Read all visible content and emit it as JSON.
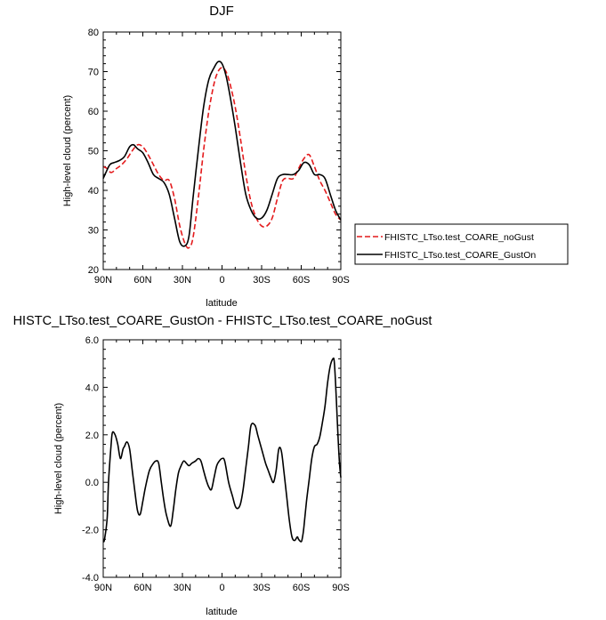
{
  "chart_data": [
    {
      "type": "line",
      "title": "DJF",
      "xlabel": "latitude",
      "ylabel": "High-level cloud (percent)",
      "xlim": [
        90,
        -90
      ],
      "ylim": [
        20,
        80
      ],
      "x_ticks": [
        90,
        60,
        30,
        0,
        -30,
        -60,
        -90
      ],
      "x_tick_labels": [
        "90N",
        "60N",
        "30N",
        "0",
        "30S",
        "60S",
        "90S"
      ],
      "y_ticks": [
        20,
        30,
        40,
        50,
        60,
        70,
        80
      ],
      "y_tick_labels": [
        "20",
        "30",
        "40",
        "50",
        "60",
        "70",
        "80"
      ],
      "legend_position": "right",
      "series": [
        {
          "name": "FHISTC_LTso.test_COARE_noGust",
          "color": "#e41a1c",
          "dash": "dashed",
          "x": [
            90,
            87,
            84,
            80,
            76,
            72,
            68,
            64,
            60,
            56,
            52,
            48,
            44,
            40,
            36,
            32,
            28,
            25,
            22,
            18,
            14,
            10,
            6,
            3,
            0,
            -3,
            -6,
            -10,
            -14,
            -18,
            -22,
            -26,
            -30,
            -34,
            -38,
            -42,
            -46,
            -50,
            -54,
            -58,
            -62,
            -66,
            -70,
            -74,
            -78,
            -82,
            -86,
            -90
          ],
          "y": [
            46,
            45.5,
            44.5,
            45.5,
            46.5,
            48,
            50,
            51.5,
            51,
            49,
            46.5,
            44,
            42.5,
            42.5,
            38,
            31,
            26.5,
            25.5,
            28,
            38,
            50,
            60,
            67,
            70,
            71,
            70,
            67,
            61,
            53,
            44,
            37,
            33,
            31,
            31,
            33,
            38,
            42.5,
            43,
            43,
            45.5,
            48,
            49,
            46,
            42.5,
            40,
            37,
            34,
            32.5
          ]
        },
        {
          "name": "FHISTC_LTso.test_COARE_GustOn",
          "color": "#000000",
          "dash": "solid",
          "x": [
            90,
            88,
            85,
            82,
            78,
            74,
            70,
            67,
            64,
            60,
            56,
            52,
            48,
            44,
            40,
            36,
            32,
            28,
            25,
            22,
            18,
            14,
            10,
            6,
            3,
            0,
            -3,
            -6,
            -10,
            -14,
            -18,
            -22,
            -26,
            -30,
            -34,
            -38,
            -42,
            -46,
            -50,
            -54,
            -58,
            -62,
            -66,
            -70,
            -74,
            -78,
            -82,
            -86,
            -90
          ],
          "y": [
            43,
            44.5,
            46.5,
            47,
            47.5,
            48.5,
            51,
            51.5,
            50.5,
            49.5,
            47,
            44,
            43,
            42,
            39,
            33,
            27,
            26,
            28.5,
            38,
            50,
            61,
            68,
            71,
            72.5,
            72,
            69,
            64,
            56,
            47,
            39,
            35,
            33,
            33,
            35,
            39,
            43,
            44,
            44,
            44,
            45,
            47,
            46.5,
            44,
            44,
            43,
            39,
            35,
            32.5
          ]
        }
      ]
    },
    {
      "type": "line",
      "title": "HISTC_LTso.test_COARE_GustOn - FHISTC_LTso.test_COARE_noGust",
      "xlabel": "latitude",
      "ylabel": "High-level cloud (percent)",
      "xlim": [
        90,
        -90
      ],
      "ylim": [
        -4,
        6
      ],
      "x_ticks": [
        90,
        60,
        30,
        0,
        -30,
        -60,
        -90
      ],
      "x_tick_labels": [
        "90N",
        "60N",
        "30N",
        "0",
        "30S",
        "60S",
        "90S"
      ],
      "y_ticks": [
        -4,
        -2,
        0,
        2,
        4,
        6
      ],
      "y_tick_labels": [
        "-4.0",
        "-2.0",
        "0.0",
        "2.0",
        "4.0",
        "6.0"
      ],
      "series": [
        {
          "color": "#000000",
          "dash": "solid",
          "x": [
            90,
            89,
            87,
            86,
            84,
            83,
            81,
            79,
            77,
            75,
            74,
            72,
            70,
            68,
            66,
            64,
            62,
            60,
            58,
            55,
            52,
            50,
            48,
            46,
            44,
            42,
            39,
            37,
            35,
            33,
            31,
            29,
            27,
            25,
            23,
            20,
            18,
            16,
            14,
            12,
            10,
            8,
            6,
            4,
            2,
            0,
            -2,
            -5,
            -8,
            -10,
            -12,
            -14,
            -16,
            -18,
            -20,
            -22,
            -25,
            -27,
            -29,
            -31,
            -33,
            -35,
            -37,
            -39,
            -41,
            -43,
            -45,
            -47,
            -49,
            -51,
            -53,
            -55,
            -57,
            -58,
            -60,
            -61,
            -62,
            -64,
            -66,
            -68,
            -70,
            -72,
            -74,
            -76,
            -78,
            -80,
            -82,
            -84,
            -85,
            -86,
            -87,
            -88,
            -89,
            -90
          ],
          "y": [
            -2.5,
            -2.4,
            -1.5,
            0,
            1.6,
            2.1,
            2,
            1.6,
            1,
            1.4,
            1.5,
            1.7,
            1.4,
            0.5,
            -0.4,
            -1.2,
            -1.35,
            -0.8,
            -0.2,
            0.5,
            0.8,
            0.9,
            0.8,
            0,
            -0.8,
            -1.4,
            -1.85,
            -1.2,
            -0.3,
            0.4,
            0.7,
            0.9,
            0.8,
            0.7,
            0.8,
            0.9,
            1,
            0.9,
            0.5,
            0.1,
            -0.2,
            -0.3,
            0.2,
            0.7,
            0.9,
            1,
            0.9,
            0,
            -0.6,
            -1,
            -1.1,
            -0.9,
            -0.3,
            0.6,
            1.5,
            2.4,
            2.4,
            2,
            1.6,
            1.2,
            0.8,
            0.5,
            0.2,
            0,
            0.5,
            1.4,
            1.3,
            0.4,
            -0.6,
            -1.6,
            -2.3,
            -2.45,
            -2.3,
            -2.4,
            -2.5,
            -2.3,
            -1.9,
            -0.8,
            0.1,
            1,
            1.5,
            1.6,
            1.9,
            2.5,
            3.2,
            4.2,
            4.9,
            5.2,
            5.1,
            4.2,
            3,
            1.8,
            0.8,
            0.2
          ]
        }
      ]
    }
  ]
}
